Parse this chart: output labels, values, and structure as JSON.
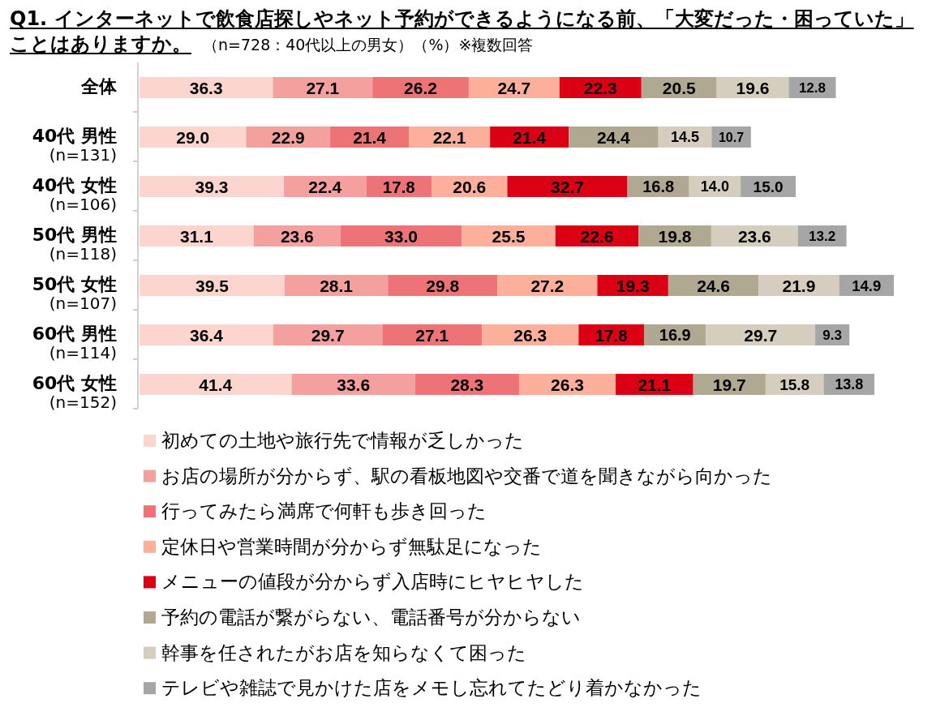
{
  "chart_data": {
    "type": "bar",
    "orientation": "horizontal",
    "stacked": true,
    "title": "Q1. インターネットで飲食店探しやネット予約ができるようになる前、「大変だった・困っていた」ことはありますか。",
    "subtitle": "（n=728：40代以上の男女）（%）※複数回答",
    "categories": [
      "全体",
      "40代 男性\n(n=131)",
      "40代 女性\n(n=106)",
      "50代 男性\n(n=118)",
      "50代 女性\n(n=107)",
      "60代 男性\n(n=114)",
      "60代 女性\n(n=152)"
    ],
    "series": [
      {
        "name": "初めての土地や旅行先で情報が乏しかった",
        "color": "#fcd5ce",
        "values": [
          36.3,
          29.0,
          39.3,
          31.1,
          39.5,
          36.4,
          41.4
        ],
        "value_labels": [
          "36.3",
          "29.0",
          "39.3",
          "31.1",
          "39.5",
          "36.4",
          "41.4"
        ]
      },
      {
        "name": "お店の場所が分からず、駅の看板地図や交番で道を聞きながら向かった",
        "color": "#f4a09f",
        "values": [
          27.1,
          22.9,
          22.4,
          23.6,
          28.1,
          29.7,
          33.6
        ],
        "value_labels": [
          "27.1",
          "22.9",
          "22.4",
          "23.6",
          "28.1",
          "29.7",
          "33.6"
        ]
      },
      {
        "name": "行ってみたら満席で何軒も歩き回った",
        "color": "#ee7377",
        "values": [
          26.2,
          21.4,
          17.8,
          33.0,
          29.8,
          27.1,
          28.3
        ],
        "value_labels": [
          "26.2",
          "21.4",
          "17.8",
          "33.0",
          "29.8",
          "27.1",
          "28.3"
        ]
      },
      {
        "name": "定休日や営業時間が分からず無駄足になった",
        "color": "#fcaf9b",
        "values": [
          24.7,
          22.1,
          20.6,
          25.5,
          27.2,
          26.3,
          26.3
        ],
        "value_labels": [
          "24.7",
          "22.1",
          "20.6",
          "25.5",
          "27.2",
          "26.3",
          "26.3"
        ]
      },
      {
        "name": "メニューの値段が分からず入店時にヒヤヒヤした",
        "color": "#dc0015",
        "values": [
          22.3,
          21.4,
          32.7,
          22.6,
          19.3,
          17.8,
          21.1
        ],
        "value_labels": [
          "22.3",
          "21.4",
          "32.7",
          "22.6",
          "19.3",
          "17.8",
          "21.1"
        ]
      },
      {
        "name": "予約の電話が繋がらない、電話番号が分からない",
        "color": "#b0a891",
        "values": [
          20.5,
          24.4,
          16.8,
          19.8,
          24.6,
          16.9,
          19.7
        ],
        "value_labels": [
          "20.5",
          "24.4",
          "16.8",
          "19.8",
          "24.6",
          "16.9",
          "19.7"
        ]
      },
      {
        "name": "幹事を任されたがお店を知らなくて困った",
        "color": "#d5cdbd",
        "values": [
          19.6,
          14.5,
          14.0,
          23.6,
          21.9,
          29.7,
          15.8
        ],
        "value_labels": [
          "19.6",
          "14.5",
          "14.0",
          "23.6",
          "21.9",
          "29.7",
          "15.8"
        ]
      },
      {
        "name": "テレビや雑誌で見かけた店をメモし忘れてたどり着かなかった",
        "color": "#a6a6a6",
        "values": [
          12.8,
          10.7,
          15.0,
          13.2,
          14.9,
          9.3,
          13.8
        ],
        "value_labels": [
          "12.8",
          "10.7",
          "15.0",
          "13.2",
          "14.9",
          "9.3",
          "13.8"
        ]
      }
    ],
    "legend": "bottom"
  }
}
